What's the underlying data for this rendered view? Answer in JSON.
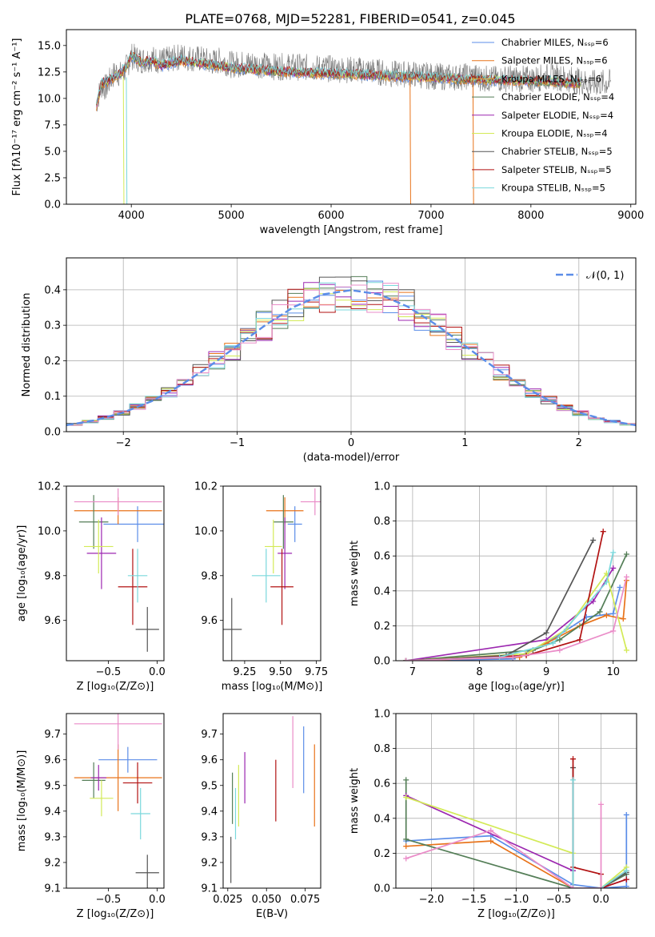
{
  "colors": {
    "blue": "#5b8de8",
    "orange": "#e8731a",
    "green": "#547e57",
    "purple": "#9c27b0",
    "yellowgreen": "#d3ea57",
    "darkgray": "#555555",
    "red": "#b21212",
    "cyan": "#7ad8dc",
    "pink": "#ea8cc8"
  },
  "chart_data": [
    {
      "id": "spectrum",
      "type": "line",
      "title": "PLATE=0768, MJD=52281, FIBERID=0541, z=0.045",
      "xlabel": "wavelength [Angstrom, rest frame]",
      "ylabel": "Flux [fλ10⁻¹⁷ erg cm⁻² s⁻¹ A⁻¹]",
      "xlim": [
        3350,
        9050
      ],
      "ylim": [
        0,
        16.5
      ],
      "xticks": [
        "4000",
        "5000",
        "6000",
        "7000",
        "8000",
        "9000"
      ],
      "yticks": [
        "0.0",
        "2.5",
        "5.0",
        "7.5",
        "10.0",
        "12.5",
        "15.0"
      ],
      "legend_position": "right",
      "legend": [
        {
          "name": "Chabrier MILES, Nₛₛₚ=6",
          "color": "#5b8de8"
        },
        {
          "name": "Salpeter MILES, Nₛₛₚ=6",
          "color": "#e8731a"
        },
        {
          "name": "Kroupa MILES, Nₛₛₚ=6",
          "color": "#e8a03c"
        },
        {
          "name": "Chabrier ELODIE, Nₛₛₚ=4",
          "color": "#547e57"
        },
        {
          "name": "Salpeter ELODIE, Nₛₛₚ=4",
          "color": "#9c27b0"
        },
        {
          "name": "Kroupa ELODIE, Nₛₛₚ=4",
          "color": "#d3ea57"
        },
        {
          "name": "Chabrier STELIB, Nₛₛₚ=5",
          "color": "#555555"
        },
        {
          "name": "Salpeter STELIB, Nₛₛₚ=5",
          "color": "#b21212"
        },
        {
          "name": "Kroupa STELIB, Nₛₛₚ=5",
          "color": "#7ad8dc"
        }
      ],
      "series": [
        {
          "name": "data",
          "color": "#777777",
          "x": [
            3650,
            3700,
            3750,
            3800,
            3850,
            3900,
            3950,
            4000,
            4100,
            4200,
            4300,
            4400,
            4500,
            4600,
            4700,
            4800,
            4900,
            5000,
            5200,
            5400,
            5600,
            5800,
            6000,
            6200,
            6400,
            6600,
            6800,
            7000,
            7200,
            7400,
            7600,
            7800,
            8000,
            8200,
            8400,
            8600,
            8800
          ],
          "y": [
            9.5,
            11.2,
            11.0,
            12.0,
            12.5,
            12.2,
            12.9,
            14.0,
            13.6,
            13.8,
            13.5,
            13.7,
            14.0,
            13.8,
            13.7,
            13.4,
            13.6,
            13.2,
            13.3,
            13.0,
            13.0,
            12.9,
            12.8,
            12.7,
            12.6,
            12.3,
            12.3,
            12.1,
            12.0,
            12.1,
            11.8,
            11.9,
            11.8,
            12.1,
            11.8,
            11.4,
            11.5
          ]
        },
        {
          "name": "Kroupa STELIB",
          "color": "#7ad8dc",
          "x": [
            3650,
            3700,
            3800,
            3900,
            3950,
            4000,
            4100,
            4200,
            4300,
            4500,
            4700,
            5000,
            5400,
            5800,
            6200,
            6600,
            7000,
            7400,
            7800,
            8200,
            8500
          ],
          "y": [
            9.2,
            11.4,
            11.8,
            12.5,
            13.0,
            14.0,
            13.4,
            13.6,
            13.1,
            13.6,
            13.3,
            12.9,
            12.6,
            12.4,
            12.3,
            12.1,
            12.0,
            11.8,
            11.7,
            11.6,
            11.4
          ]
        }
      ]
    },
    {
      "id": "residuals",
      "type": "line",
      "xlabel": "(data-model)/error",
      "ylabel": "Normed distribution",
      "xlim": [
        -2.5,
        2.5
      ],
      "ylim": [
        0,
        0.49
      ],
      "xticks": [
        "−2",
        "−1",
        "0",
        "1",
        "2"
      ],
      "yticks": [
        "0.0",
        "0.1",
        "0.2",
        "0.3",
        "0.4"
      ],
      "grid": true,
      "legend": [
        {
          "name": "𝒩(0, 1)",
          "color": "#5b8de8"
        }
      ],
      "legend_position": "top-right",
      "x": [
        -2.5,
        -2.25,
        -2,
        -1.75,
        -1.5,
        -1.25,
        -1,
        -0.75,
        -0.5,
        -0.25,
        0,
        0.25,
        0.5,
        0.75,
        1,
        1.25,
        1.5,
        1.75,
        2,
        2.25,
        2.5
      ],
      "normal_curve": [
        0.018,
        0.032,
        0.054,
        0.086,
        0.13,
        0.183,
        0.242,
        0.301,
        0.352,
        0.387,
        0.399,
        0.387,
        0.352,
        0.301,
        0.242,
        0.183,
        0.13,
        0.086,
        0.054,
        0.032,
        0.018
      ]
    },
    {
      "id": "age_vs_Z",
      "type": "scatter",
      "xlabel": "Z [log₁₀(Z/Z⊙)]",
      "ylabel": "age  [log₁₀(age/yr)]",
      "xlim": [
        -0.93,
        0.07
      ],
      "ylim": [
        9.42,
        10.2
      ],
      "xticks": [
        "−0.5",
        "0.0"
      ],
      "yticks": [
        "9.6",
        "9.8",
        "10.0",
        "10.2"
      ],
      "points": [
        {
          "x": -0.2,
          "y": 10.03,
          "xerr": 0.35,
          "yerr": 0.08,
          "color": "#5b8de8"
        },
        {
          "x": -0.4,
          "y": 10.09,
          "xerr": 0.45,
          "yerr": 0.06,
          "color": "#e8731a"
        },
        {
          "x": -0.65,
          "y": 10.04,
          "xerr": 0.15,
          "yerr": 0.12,
          "color": "#547e57"
        },
        {
          "x": -0.57,
          "y": 9.9,
          "xerr": 0.15,
          "yerr": 0.16,
          "color": "#9c27b0"
        },
        {
          "x": -0.6,
          "y": 9.93,
          "xerr": 0.15,
          "yerr": 0.12,
          "color": "#d3ea57"
        },
        {
          "x": -0.1,
          "y": 9.56,
          "xerr": 0.12,
          "yerr": 0.1,
          "color": "#555555"
        },
        {
          "x": -0.25,
          "y": 9.75,
          "xerr": 0.15,
          "yerr": 0.17,
          "color": "#b21212"
        },
        {
          "x": -0.2,
          "y": 9.8,
          "xerr": 0.1,
          "yerr": 0.12,
          "color": "#7ad8dc"
        },
        {
          "x": -0.4,
          "y": 10.13,
          "xerr": 0.45,
          "yerr": 0.06,
          "color": "#ea8cc8"
        }
      ]
    },
    {
      "id": "age_vs_mass",
      "type": "scatter",
      "xlabel": "mass [log₁₀(M/M⊙)]",
      "ylabel": "",
      "xlim": [
        9.1,
        9.78
      ],
      "ylim": [
        9.42,
        10.2
      ],
      "xticks": [
        "9.25",
        "9.50",
        "9.75"
      ],
      "yticks": [
        "9.6",
        "9.8",
        "10.0",
        "10.2"
      ],
      "points": [
        {
          "x": 9.6,
          "y": 10.03,
          "xerr": 0.05,
          "yerr": 0.08,
          "color": "#5b8de8"
        },
        {
          "x": 9.53,
          "y": 10.09,
          "xerr": 0.13,
          "yerr": 0.06,
          "color": "#e8731a"
        },
        {
          "x": 9.52,
          "y": 10.04,
          "xerr": 0.07,
          "yerr": 0.12,
          "color": "#547e57"
        },
        {
          "x": 9.53,
          "y": 9.9,
          "xerr": 0.05,
          "yerr": 0.16,
          "color": "#9c27b0"
        },
        {
          "x": 9.45,
          "y": 9.93,
          "xerr": 0.06,
          "yerr": 0.12,
          "color": "#d3ea57"
        },
        {
          "x": 9.16,
          "y": 9.56,
          "xerr": 0.07,
          "yerr": 0.14,
          "color": "#555555"
        },
        {
          "x": 9.51,
          "y": 9.75,
          "xerr": 0.08,
          "yerr": 0.17,
          "color": "#b21212"
        },
        {
          "x": 9.4,
          "y": 9.8,
          "xerr": 0.1,
          "yerr": 0.12,
          "color": "#7ad8dc"
        },
        {
          "x": 9.74,
          "y": 10.13,
          "xerr": 0.1,
          "yerr": 0.06,
          "color": "#ea8cc8"
        }
      ]
    },
    {
      "id": "mass_weight_vs_age",
      "type": "line",
      "xlabel": "age  [log₁₀(age/yr)]",
      "ylabel": "mass weight",
      "xlim": [
        6.75,
        10.35
      ],
      "ylim": [
        0,
        1.0
      ],
      "xticks": [
        "7",
        "8",
        "9",
        "10"
      ],
      "yticks": [
        "0.0",
        "0.2",
        "0.4",
        "0.6",
        "0.8",
        "1.0"
      ],
      "grid": true,
      "series": [
        {
          "color": "#5b8de8",
          "x": [
            6.9,
            8.5,
            9.0,
            9.6,
            10.0,
            10.1
          ],
          "y": [
            0.0,
            0.01,
            0.1,
            0.25,
            0.27,
            0.42
          ]
        },
        {
          "color": "#e8731a",
          "x": [
            6.9,
            8.6,
            9.0,
            9.5,
            9.9,
            10.15,
            10.2
          ],
          "y": [
            0.0,
            0.02,
            0.1,
            0.2,
            0.26,
            0.24,
            0.46
          ]
        },
        {
          "color": "#547e57",
          "x": [
            6.9,
            8.8,
            9.2,
            9.8,
            10.2
          ],
          "y": [
            0.0,
            0.06,
            0.12,
            0.28,
            0.61
          ]
        },
        {
          "color": "#9c27b0",
          "x": [
            6.9,
            9.0,
            9.7,
            10.0
          ],
          "y": [
            0.0,
            0.12,
            0.34,
            0.53
          ]
        },
        {
          "color": "#d3ea57",
          "x": [
            6.9,
            8.7,
            9.3,
            9.9,
            10.2
          ],
          "y": [
            0.0,
            0.04,
            0.18,
            0.5,
            0.06
          ]
        },
        {
          "color": "#555555",
          "x": [
            6.9,
            8.4,
            9.0,
            9.7
          ],
          "y": [
            0.0,
            0.03,
            0.16,
            0.69
          ]
        },
        {
          "color": "#b21212",
          "x": [
            6.9,
            8.7,
            9.5,
            9.85
          ],
          "y": [
            0.0,
            0.03,
            0.12,
            0.74
          ]
        },
        {
          "color": "#7ad8dc",
          "x": [
            6.9,
            8.3,
            9.1,
            9.9,
            10.0
          ],
          "y": [
            0.0,
            0.02,
            0.1,
            0.45,
            0.62
          ]
        },
        {
          "color": "#ea8cc8",
          "x": [
            6.9,
            8.5,
            9.2,
            10.0,
            10.2
          ],
          "y": [
            0.0,
            0.02,
            0.06,
            0.17,
            0.48
          ]
        }
      ]
    },
    {
      "id": "mass_vs_Z",
      "type": "scatter",
      "xlabel": "Z [log₁₀(Z/Z⊙)]",
      "ylabel": "mass [log₁₀(M/M⊙)]",
      "xlim": [
        -0.93,
        0.07
      ],
      "ylim": [
        9.1,
        9.78
      ],
      "xticks": [
        "−0.5",
        "0.0"
      ],
      "yticks": [
        "9.1",
        "9.2",
        "9.3",
        "9.4",
        "9.5",
        "9.6",
        "9.7"
      ],
      "points": [
        {
          "x": -0.3,
          "y": 9.6,
          "xerr": 0.3,
          "yerr": 0.05,
          "color": "#5b8de8"
        },
        {
          "x": -0.4,
          "y": 9.53,
          "xerr": 0.45,
          "yerr": 0.13,
          "color": "#e8731a"
        },
        {
          "x": -0.65,
          "y": 9.52,
          "xerr": 0.12,
          "yerr": 0.07,
          "color": "#547e57"
        },
        {
          "x": -0.6,
          "y": 9.53,
          "xerr": 0.08,
          "yerr": 0.05,
          "color": "#9c27b0"
        },
        {
          "x": -0.57,
          "y": 9.45,
          "xerr": 0.12,
          "yerr": 0.07,
          "color": "#d3ea57"
        },
        {
          "x": -0.1,
          "y": 9.16,
          "xerr": 0.12,
          "yerr": 0.07,
          "color": "#555555"
        },
        {
          "x": -0.2,
          "y": 9.51,
          "xerr": 0.15,
          "yerr": 0.08,
          "color": "#b21212"
        },
        {
          "x": -0.17,
          "y": 9.39,
          "xerr": 0.1,
          "yerr": 0.1,
          "color": "#7ad8dc"
        },
        {
          "x": -0.4,
          "y": 9.74,
          "xerr": 0.45,
          "yerr": 0.1,
          "color": "#ea8cc8"
        }
      ]
    },
    {
      "id": "mass_vs_EBV",
      "type": "scatter",
      "xlabel": "E(B-V)",
      "ylabel": "",
      "xlim": [
        0.022,
        0.085
      ],
      "ylim": [
        9.1,
        9.78
      ],
      "xticks": [
        "0.025",
        "0.050",
        "0.075"
      ],
      "yticks": [
        "9.1",
        "9.2",
        "9.3",
        "9.4",
        "9.5",
        "9.6",
        "9.7"
      ],
      "points": [
        {
          "x": 0.074,
          "y": 9.6,
          "xerr": 0.0,
          "yerr": 0.13,
          "color": "#5b8de8"
        },
        {
          "x": 0.081,
          "y": 9.5,
          "xerr": 0.0,
          "yerr": 0.16,
          "color": "#e8731a"
        },
        {
          "x": 0.028,
          "y": 9.45,
          "xerr": 0.0,
          "yerr": 0.1,
          "color": "#547e57"
        },
        {
          "x": 0.036,
          "y": 9.53,
          "xerr": 0.0,
          "yerr": 0.1,
          "color": "#9c27b0"
        },
        {
          "x": 0.032,
          "y": 9.46,
          "xerr": 0.0,
          "yerr": 0.12,
          "color": "#d3ea57"
        },
        {
          "x": 0.027,
          "y": 9.21,
          "xerr": 0.0,
          "yerr": 0.09,
          "color": "#555555"
        },
        {
          "x": 0.056,
          "y": 9.48,
          "xerr": 0.0,
          "yerr": 0.12,
          "color": "#b21212"
        },
        {
          "x": 0.03,
          "y": 9.39,
          "xerr": 0.0,
          "yerr": 0.1,
          "color": "#7ad8dc"
        },
        {
          "x": 0.067,
          "y": 9.63,
          "xerr": 0.0,
          "yerr": 0.14,
          "color": "#ea8cc8"
        }
      ]
    },
    {
      "id": "mass_weight_vs_Z",
      "type": "line",
      "xlabel": "Z [log₁₀(Z/Z⊙)]",
      "ylabel": "mass weight",
      "xlim": [
        -2.42,
        0.42
      ],
      "ylim": [
        0,
        1.0
      ],
      "xticks": [
        "−2.0",
        "−1.5",
        "−1.0",
        "−0.5",
        "0.0"
      ],
      "yticks": [
        "0.0",
        "0.2",
        "0.4",
        "0.6",
        "0.8",
        "1.0"
      ],
      "grid": true,
      "series": [
        {
          "color": "#5b8de8",
          "x": [
            -2.3,
            -1.3,
            -0.33,
            0.0,
            0.3,
            0.3
          ],
          "y": [
            0.27,
            0.3,
            0.02,
            0.0,
            0.01,
            0.42
          ]
        },
        {
          "color": "#e8731a",
          "x": [
            -2.3,
            -1.3,
            -0.33,
            0.0,
            0.3
          ],
          "y": [
            0.24,
            0.27,
            0.0,
            0.0,
            0.1
          ]
        },
        {
          "color": "#547e57",
          "x": [
            -2.3,
            -2.3,
            -0.33,
            0.0,
            0.3
          ],
          "y": [
            0.62,
            0.28,
            0.0,
            0.0,
            0.08
          ]
        },
        {
          "color": "#9c27b0",
          "x": [
            -2.3,
            -0.33,
            -0.33,
            0.0,
            0.3
          ],
          "y": [
            0.53,
            0.1,
            0.0,
            0.0,
            0.05
          ]
        },
        {
          "color": "#d3ea57",
          "x": [
            -2.3,
            -0.33,
            -0.33,
            0.0,
            0.3
          ],
          "y": [
            0.52,
            0.2,
            0.0,
            0.0,
            0.12
          ]
        },
        {
          "color": "#555555",
          "x": [
            -0.33,
            -0.33,
            0.0,
            0.3
          ],
          "y": [
            0.69,
            0.0,
            0.0,
            0.09
          ]
        },
        {
          "color": "#b21212",
          "x": [
            -0.33,
            -0.33,
            0.0,
            0.0,
            0.3
          ],
          "y": [
            0.74,
            0.12,
            0.08,
            0.0,
            0.05
          ]
        },
        {
          "color": "#7ad8dc",
          "x": [
            -0.33,
            -0.33,
            0.0,
            0.3
          ],
          "y": [
            0.62,
            0.0,
            0.0,
            0.1
          ]
        },
        {
          "color": "#ea8cc8",
          "x": [
            -2.3,
            -1.3,
            -0.33,
            0.0,
            0.0
          ],
          "y": [
            0.17,
            0.33,
            0.0,
            0.0,
            0.48
          ]
        }
      ]
    }
  ]
}
